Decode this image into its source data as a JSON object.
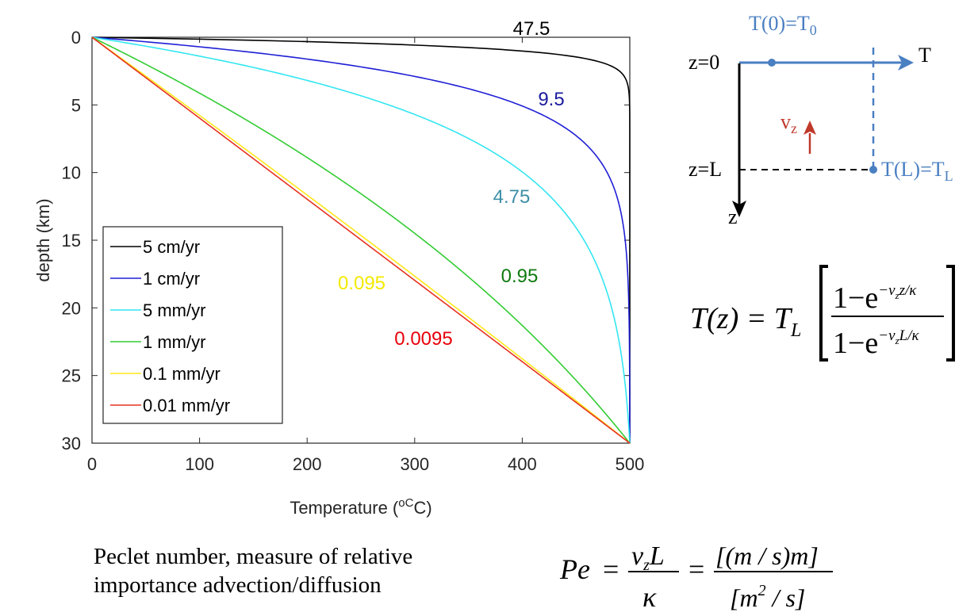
{
  "chart_data": {
    "type": "line",
    "xlabel": "Temperature (",
    "xlabel_unit": "oC",
    "ylabel": "depth (km)",
    "xlim": [
      0,
      500
    ],
    "ylim": [
      0,
      30
    ],
    "y_reversed": true,
    "x_ticks": [
      "0",
      "100",
      "200",
      "300",
      "400",
      "500"
    ],
    "y_ticks": [
      "0",
      "5",
      "10",
      "15",
      "20",
      "25",
      "30"
    ],
    "T0": 0,
    "TL": 500,
    "L_km": 30,
    "legend_position": "lower-left",
    "series": [
      {
        "name": "5 cm/yr",
        "color": "#000000",
        "peclet": 47.5,
        "label": "47.5",
        "label_color": "#000000"
      },
      {
        "name": "1 cm/yr",
        "color": "#1f1fd6",
        "peclet": 9.5,
        "label": "9.5",
        "label_color": "#1a1a9e"
      },
      {
        "name": "5 mm/yr",
        "color": "#33e6f2",
        "peclet": 4.75,
        "label": "4.75",
        "label_color": "#3d8fa6"
      },
      {
        "name": "1 mm/yr",
        "color": "#33cc33",
        "peclet": 0.95,
        "label": "0.95",
        "label_color": "#0f7a0f"
      },
      {
        "name": "0.1 mm/yr",
        "color": "#ffe81a",
        "peclet": 0.095,
        "label": "0.095",
        "label_color": "#f2ea00"
      },
      {
        "name": "0.01 mm/yr",
        "color": "#e63322",
        "peclet": 0.0095,
        "label": "0.0095",
        "label_color": "#e8000b"
      }
    ]
  },
  "diagram": {
    "top_label": "T(0)=T",
    "top_label_sub": "0",
    "axis_T": "T",
    "z0": "z=0",
    "zL": "z=L",
    "z_axis": "z",
    "vz": "v",
    "vz_sub": "z",
    "bottom_label": "T(L)=T",
    "bottom_label_sub": "L",
    "color_blue": "#4a7fc1",
    "color_red": "#c0392b"
  },
  "formula": {
    "lhs": "T(z) = T",
    "lhs_sub": "L",
    "num": "1−e",
    "num_exp": "−v",
    "num_exp_sub": "z",
    "num_exp_rest": "z/κ",
    "den": "1−e",
    "den_exp": "−v",
    "den_exp_sub": "z",
    "den_exp_rest": "L/κ"
  },
  "caption": {
    "line1": "Peclet number, measure of relative",
    "line2": "importance advection/diffusion"
  },
  "peclet": {
    "lhs": "Pe",
    "num": "v",
    "num_sub": "z",
    "num_rest": "L",
    "den": "κ",
    "num2": "[(m / s)m]",
    "den2_a": "[m",
    "den2_sup": "2",
    "den2_b": " / s]"
  }
}
